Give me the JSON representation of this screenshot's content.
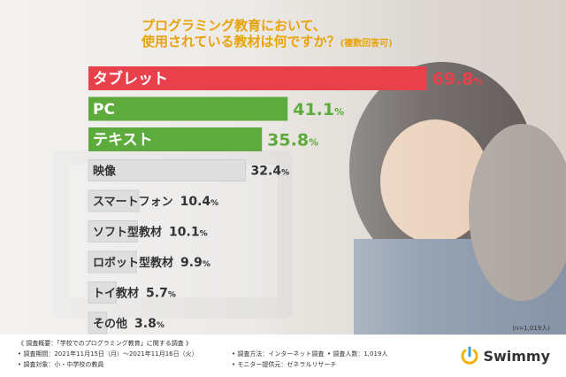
{
  "title": {
    "line1": "プログラミング教育において、",
    "line2": "使用されている教材は何ですか？",
    "line2_suffix": "(複数回答可)"
  },
  "chart_data": {
    "type": "bar",
    "orientation": "horizontal",
    "categories": [
      "タブレット",
      "PC",
      "テキスト",
      "映像",
      "スマートフォン",
      "ソフト型教材",
      "ロボット型教材",
      "トイ教材",
      "その他"
    ],
    "values": [
      69.8,
      41.1,
      35.8,
      32.4,
      10.4,
      10.1,
      9.9,
      5.7,
      3.8
    ],
    "value_labels": [
      "69.8%",
      "41.1%",
      "35.8%",
      "32.4%",
      "10.4%",
      "10.1%",
      "9.9%",
      "5.7%",
      "3.8%"
    ],
    "colors": [
      "#e8414b",
      "#5cab3c",
      "#5cab3c",
      "#dedede",
      "#dedede",
      "#dedede",
      "#dedede",
      "#dedede",
      "#dedede"
    ],
    "label_colors": [
      "#ffffff",
      "#ffffff",
      "#ffffff",
      "#333333",
      "#333333",
      "#333333",
      "#333333",
      "#333333",
      "#333333"
    ],
    "value_colors": [
      "#e8414b",
      "#5cab3c",
      "#5cab3c",
      "#333333",
      "#333333",
      "#333333",
      "#333333",
      "#333333",
      "#333333"
    ],
    "xlim": [
      0,
      100
    ],
    "grid": false,
    "legend": "none"
  },
  "note": "(n=1,019人)",
  "survey": {
    "heading": "《 調査概要：「学校でのプログラミング教育」に関する調査 》",
    "period": "• 調査期間：2021年11月15日（月）〜2021年11月16日（火）",
    "method": "• 調査方法：インターネット調査",
    "count": "• 調査人数：1,019人",
    "target": "• 調査対象：小・中学校の教員",
    "provider": "• モニター提供元：ゼネラルリサーチ"
  },
  "brand": {
    "name": "Swimmy"
  }
}
